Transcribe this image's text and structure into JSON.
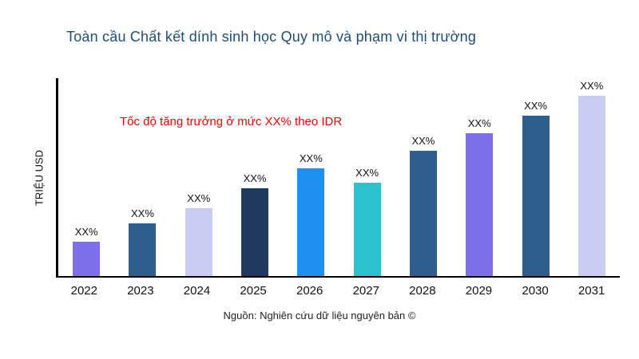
{
  "header": {
    "title": "Toàn cầu Chất kết dính sinh học Quy mô và phạm vi thị trường"
  },
  "annotation": {
    "text": "Tốc độ tăng trưởng ở mức XX% theo IDR",
    "color": "#FF0000"
  },
  "axes": {
    "y_label": "TRIỆU USD",
    "axis_color": "#000000"
  },
  "footer": {
    "source": "Nguồn: Nghiên cứu dữ liệu nguyên bản ©"
  },
  "theme": {
    "title_color": "#1F4E79",
    "background": "#FFFFFF"
  },
  "chart_data": {
    "type": "bar",
    "title": "Toàn cầu Chất kết dính sinh học Quy mô và phạm vi thị trường",
    "categories": [
      "2022",
      "2023",
      "2024",
      "2025",
      "2026",
      "2027",
      "2028",
      "2029",
      "2030",
      "2031"
    ],
    "values": [
      43,
      67,
      86,
      111,
      136,
      118,
      158,
      180,
      203,
      228
    ],
    "value_labels": [
      "XX%",
      "XX%",
      "XX%",
      "XX%",
      "XX%",
      "XX%",
      "XX%",
      "XX%",
      "XX%",
      "XX%"
    ],
    "bar_colors": [
      "#7C6FE8",
      "#2E5E8E",
      "#C9CDF2",
      "#1E3A5F",
      "#1E90F0",
      "#2BC4CE",
      "#2E5E8E",
      "#7C6FE8",
      "#2E5E8E",
      "#C9CDF2"
    ],
    "xlabel": "",
    "ylabel": "TRIỆU USD",
    "ylim": [
      0,
      250
    ],
    "grid": false,
    "legend": false,
    "annotations": [
      "Tốc độ tăng trưởng ở mức XX% theo IDR"
    ],
    "source": "Nguồn: Nghiên cứu dữ liệu nguyên bản ©"
  }
}
